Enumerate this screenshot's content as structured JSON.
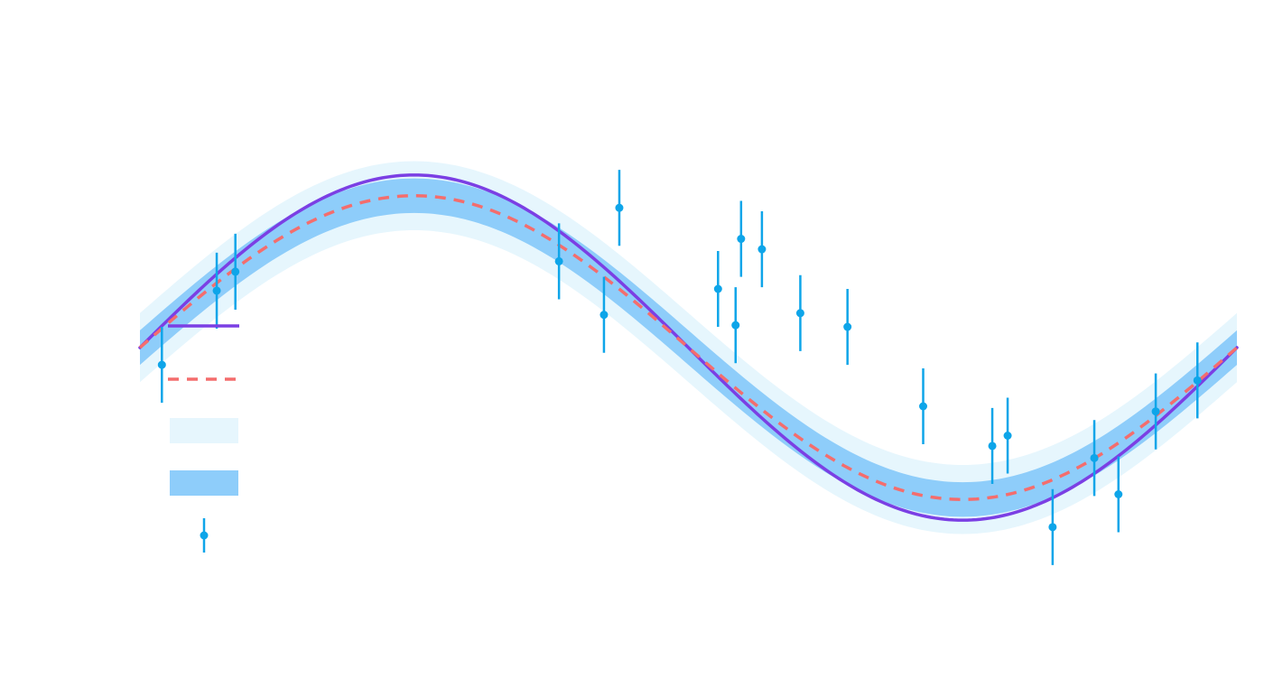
{
  "chart_data": {
    "type": "line",
    "title": "",
    "xlabel": "",
    "ylabel": "",
    "xlim": [
      0,
      10
    ],
    "ylim": [
      -1.7,
      1.7
    ],
    "grid": false,
    "legend_placement": "left",
    "curves": {
      "true_function": {
        "style": "solid",
        "color": "#7b3fe4",
        "amplitude": 1.0,
        "period": 10,
        "phase": 0.0,
        "offset": 0.0
      },
      "fitted_mean": {
        "style": "dashed",
        "color": "#f46d6d",
        "amplitude": 0.88,
        "period": 10,
        "phase": 0.0,
        "offset": 0.0
      }
    },
    "bands": {
      "outer": {
        "color": "#e6f6fd",
        "half_width": 0.2
      },
      "inner": {
        "color": "#8ecdfa",
        "half_width": 0.1
      }
    },
    "observations": {
      "color": "#0ea5e9",
      "points": [
        {
          "x": 0.2,
          "y": -0.1,
          "err": 0.22
        },
        {
          "x": 0.7,
          "y": 0.33,
          "err": 0.22
        },
        {
          "x": 0.87,
          "y": 0.44,
          "err": 0.22
        },
        {
          "x": 3.82,
          "y": 0.5,
          "err": 0.22
        },
        {
          "x": 4.23,
          "y": 0.19,
          "err": 0.22
        },
        {
          "x": 4.37,
          "y": 0.81,
          "err": 0.22
        },
        {
          "x": 5.27,
          "y": 0.34,
          "err": 0.22
        },
        {
          "x": 5.43,
          "y": 0.13,
          "err": 0.22
        },
        {
          "x": 5.48,
          "y": 0.63,
          "err": 0.22
        },
        {
          "x": 5.67,
          "y": 0.57,
          "err": 0.22
        },
        {
          "x": 6.02,
          "y": 0.2,
          "err": 0.22
        },
        {
          "x": 6.45,
          "y": 0.12,
          "err": 0.22
        },
        {
          "x": 7.14,
          "y": -0.34,
          "err": 0.22
        },
        {
          "x": 7.77,
          "y": -0.57,
          "err": 0.22
        },
        {
          "x": 7.91,
          "y": -0.51,
          "err": 0.22
        },
        {
          "x": 8.32,
          "y": -1.04,
          "err": 0.22
        },
        {
          "x": 8.7,
          "y": -0.64,
          "err": 0.22
        },
        {
          "x": 8.92,
          "y": -0.85,
          "err": 0.22
        },
        {
          "x": 9.26,
          "y": -0.37,
          "err": 0.22
        },
        {
          "x": 9.64,
          "y": -0.19,
          "err": 0.22
        }
      ]
    },
    "legend": [
      "",
      "",
      "",
      "",
      ""
    ]
  }
}
